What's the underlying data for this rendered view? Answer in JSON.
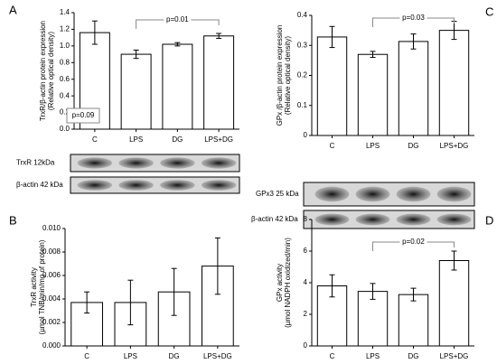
{
  "chart_data": [
    {
      "type": "bar",
      "panel": "A",
      "ylabel": [
        "TrxR/β-actin protein expression",
        "(Relative optical density)"
      ],
      "categories": [
        "C",
        "LPS",
        "DG",
        "LPS+DG"
      ],
      "values": [
        1.16,
        0.9,
        1.02,
        1.12
      ],
      "errors": [
        0.14,
        0.05,
        0.02,
        0.03
      ],
      "color": "#ffffff",
      "ylim": [
        0,
        1.4
      ],
      "yticks": [
        {
          "value": 0,
          "label": "0.0"
        },
        0.2,
        0.4,
        0.6,
        0.8,
        {
          "value": 1,
          "label": "1.0"
        },
        1.2,
        1.4
      ],
      "annotations": [
        "p=0.01",
        "p=0.09"
      ],
      "blot_labels": [
        "TrxR 12kDa",
        "β-actin 42 kDa"
      ]
    },
    {
      "type": "bar",
      "panel": "C",
      "ylabel": [
        "GPx /β-actin protein expression",
        "(Relative optical density)"
      ],
      "categories": [
        "C",
        "LPS",
        "DG",
        "LPS+DG"
      ],
      "values": [
        0.328,
        0.27,
        0.313,
        0.35
      ],
      "errors": [
        0.035,
        0.01,
        0.025,
        0.03
      ],
      "color": "#ffffff",
      "ylim": [
        0,
        0.4
      ],
      "yticks": [
        0,
        0.1,
        0.2,
        0.3,
        0.4
      ],
      "annotations": [
        "p=0.03"
      ],
      "blot_labels": [
        "GPx3 25 kDa",
        "β-actin 42 kDa"
      ]
    },
    {
      "type": "bar",
      "panel": "B",
      "ylabel": [
        "TrxR activity",
        "(µmol TNB/min/mg of protein)"
      ],
      "categories": [
        "C",
        "LPS",
        "DG",
        "LPS+DG"
      ],
      "values": [
        0.0037,
        0.0037,
        0.0046,
        0.0068
      ],
      "errors": [
        0.0009,
        0.0019,
        0.002,
        0.0024
      ],
      "color": "#ffffff",
      "ylim": [
        0,
        0.01
      ],
      "yticks": [
        {
          "value": 0,
          "label": "0.000"
        },
        {
          "value": 0.002,
          "label": "0.002"
        },
        {
          "value": 0.004,
          "label": "0.004"
        },
        {
          "value": 0.006,
          "label": "0.006"
        },
        {
          "value": 0.008,
          "label": "0.008"
        },
        {
          "value": 0.01,
          "label": "0.010"
        }
      ],
      "annotations": [],
      "blot_labels": []
    },
    {
      "type": "bar",
      "panel": "D",
      "ylabel": [
        "GPx activity",
        "(µmol NADPH oxidized/min)"
      ],
      "categories": [
        "C",
        "LPS",
        "DG",
        "LPS+DG"
      ],
      "values": [
        3.8,
        3.45,
        3.25,
        5.4
      ],
      "errors": [
        0.7,
        0.5,
        0.4,
        0.6
      ],
      "color": "#ffffff",
      "ylim": [
        0,
        8
      ],
      "yticks": [
        0,
        2,
        4,
        6,
        8
      ],
      "annotations": [
        "p=0.02"
      ],
      "blot_labels": []
    }
  ]
}
